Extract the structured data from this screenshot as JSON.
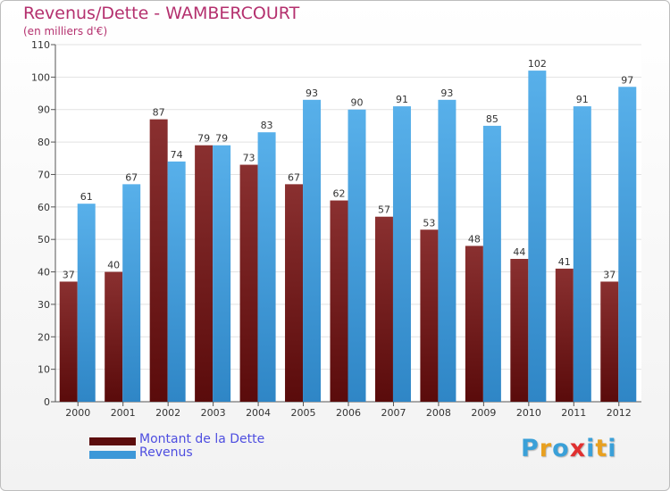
{
  "chart_data": {
    "type": "bar",
    "title": "Revenus/Dette - WAMBERCOURT",
    "subtitle": "(en milliers d'€)",
    "categories": [
      "2000",
      "2001",
      "2002",
      "2003",
      "2004",
      "2005",
      "2006",
      "2007",
      "2008",
      "2009",
      "2010",
      "2011",
      "2012"
    ],
    "series": [
      {
        "name": "Montant de la Dette",
        "color": "#7a1f1f",
        "values": [
          37,
          40,
          87,
          79,
          73,
          67,
          62,
          57,
          53,
          48,
          44,
          41,
          37
        ]
      },
      {
        "name": "Revenus",
        "color": "#3d98d8",
        "values": [
          61,
          67,
          74,
          79,
          83,
          93,
          90,
          91,
          93,
          85,
          102,
          91,
          97
        ]
      }
    ],
    "ylim": [
      0,
      110
    ],
    "yticks": [
      0,
      10,
      20,
      30,
      40,
      50,
      60,
      70,
      80,
      90,
      100,
      110
    ],
    "grid": true,
    "legend": "bottom-left"
  },
  "logo": {
    "letters": [
      "P",
      "r",
      "o",
      "x",
      "i",
      "t",
      "i"
    ],
    "colors": [
      "#3aa0d8",
      "#e8a020",
      "#3aa0d8",
      "#e03030",
      "#3aa0d8",
      "#e8a020",
      "#3aa0d8"
    ]
  }
}
